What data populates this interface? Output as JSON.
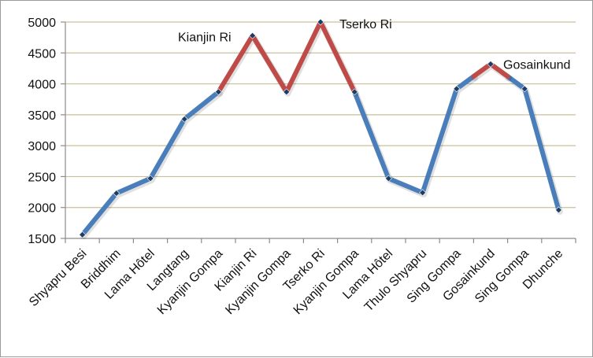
{
  "chart_data": {
    "type": "line",
    "title": "",
    "xlabel": "",
    "ylabel": "",
    "categories": [
      "Shyapru Besi",
      "Briddhim",
      "Lama Hôtel",
      "Langtang",
      "Kyanjin Gompa",
      "Kianjin Ri",
      "Kyanjin Gompa",
      "Tserko Ri",
      "Kyanjin Gompa",
      "Lama Hôtel",
      "Thulo Shyapru",
      "Sing Gompa",
      "Gosainkund",
      "Sing Gompa",
      "Dhunche"
    ],
    "values": [
      1560,
      2230,
      2470,
      3430,
      3870,
      4780,
      3870,
      5000,
      3870,
      2470,
      2240,
      3920,
      4320,
      3920,
      1960
    ],
    "ylim": [
      1500,
      5000
    ],
    "yticks": [
      1500,
      2000,
      2500,
      3000,
      3500,
      4000,
      4500,
      5000
    ],
    "grid": true,
    "highlight_segments": [
      [
        4,
        8
      ],
      [
        11.5,
        12.5
      ]
    ],
    "annotations": [
      {
        "text": "Kianjin Ri",
        "index": 5
      },
      {
        "text": "Tserko Ri",
        "index": 7
      },
      {
        "text": "Gosainkund",
        "index": 12
      }
    ],
    "colors": {
      "line": "#4a7ebb",
      "highlight": "#be4b48",
      "marker": "#1f3d63",
      "grid": "#c9c19a",
      "axis": "#8c8c8c"
    }
  }
}
